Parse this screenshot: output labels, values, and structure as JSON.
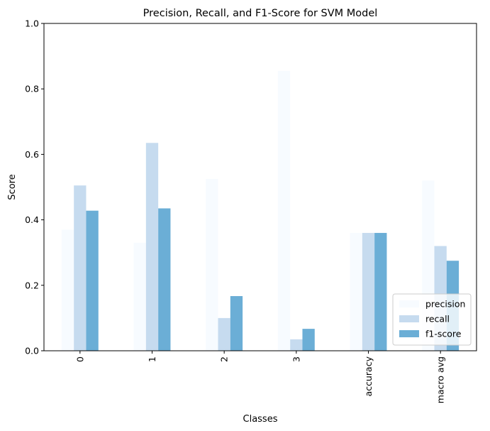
{
  "chart_data": {
    "type": "bar",
    "title": "Precision, Recall, and F1-Score for SVM Model",
    "xlabel": "Classes",
    "ylabel": "Score",
    "ylim": [
      0,
      1.0
    ],
    "yticks": [
      0.0,
      0.2,
      0.4,
      0.6,
      0.8,
      1.0
    ],
    "ytick_labels": [
      "0.0",
      "0.2",
      "0.4",
      "0.6",
      "0.8",
      "1.0"
    ],
    "categories": [
      "0",
      "1",
      "2",
      "3",
      "accuracy",
      "macro avg"
    ],
    "series": [
      {
        "name": "precision",
        "color": "#f7fbff",
        "values": [
          0.37,
          0.33,
          0.525,
          0.855,
          0.36,
          0.52
        ]
      },
      {
        "name": "recall",
        "color": "#c6dbef",
        "values": [
          0.505,
          0.635,
          0.1,
          0.035,
          0.36,
          0.32
        ]
      },
      {
        "name": "f1-score",
        "color": "#6baed6",
        "values": [
          0.428,
          0.435,
          0.167,
          0.067,
          0.36,
          0.275
        ]
      }
    ],
    "legend_position": "lower-right",
    "grid": false
  }
}
